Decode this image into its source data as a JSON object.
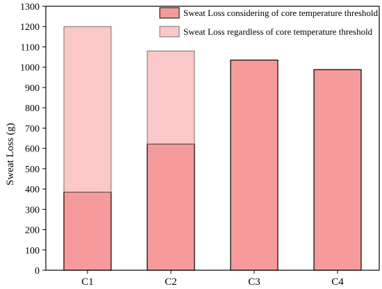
{
  "chart_data": {
    "type": "bar",
    "stacked": true,
    "categories": [
      "C1",
      "C2",
      "C3",
      "C4"
    ],
    "series": [
      {
        "name": "Sweat Loss considering of core temperature threshold",
        "values": [
          385,
          622,
          1035,
          988
        ],
        "color": "#F59B9B"
      },
      {
        "name": "Sweat Loss regardless of core temperature threshold",
        "values": [
          815,
          458,
          0,
          0
        ],
        "color": "#FAC8C8"
      }
    ],
    "xlabel": "",
    "ylabel": "Sweat Loss (g)",
    "ylim": [
      0,
      1300
    ],
    "yticks": [
      0,
      100,
      200,
      300,
      400,
      500,
      600,
      700,
      800,
      900,
      1000,
      1100,
      1200,
      1300
    ],
    "grid": false,
    "legend_position": "top-right"
  }
}
